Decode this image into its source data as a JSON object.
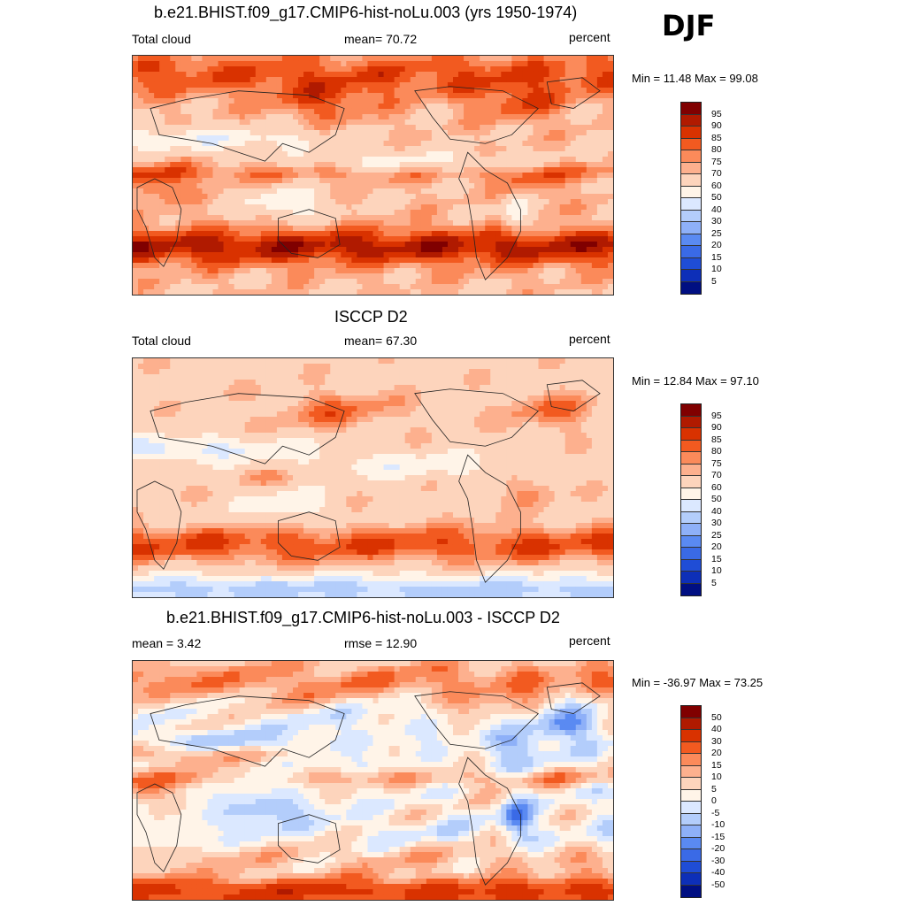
{
  "season": "DJF",
  "colors": {
    "abs_scale": [
      "#800000",
      "#b01a00",
      "#d93200",
      "#f25a20",
      "#fb8a5a",
      "#fdb08e",
      "#fdd4bc",
      "#fff4e8",
      "#dbe8ff",
      "#b3cdfb",
      "#8eb0f8",
      "#5a8af2",
      "#3a6ae6",
      "#1f4dd6",
      "#0d2fb8",
      "#000f82"
    ],
    "diff_scale": [
      "#800000",
      "#b01a00",
      "#d93200",
      "#f25a20",
      "#fb8a5a",
      "#fdb08e",
      "#fdd4bc",
      "#fff4e8",
      "#dbe8ff",
      "#b3cdfb",
      "#8eb0f8",
      "#5a8af2",
      "#3a6ae6",
      "#1f4dd6",
      "#0d2fb8",
      "#000f82"
    ]
  },
  "panels": [
    {
      "title": "b.e21.BHIST.f09_g17.CMIP6-hist-noLu.003 (yrs 1950-1974)",
      "left_label": "Total cloud",
      "center_label": "mean=  70.72",
      "units": "percent",
      "minmax": "Min =  11.48 Max =  99.08",
      "levels": [
        "95",
        "90",
        "85",
        "80",
        "75",
        "70",
        "60",
        "50",
        "40",
        "30",
        "25",
        "20",
        "15",
        "10",
        "5"
      ],
      "field": "model"
    },
    {
      "title": "ISCCP D2",
      "left_label": "Total cloud",
      "center_label": "mean=  67.30",
      "units": "percent",
      "minmax": "Min =  12.84 Max =  97.10",
      "levels": [
        "95",
        "90",
        "85",
        "80",
        "75",
        "70",
        "60",
        "50",
        "40",
        "30",
        "25",
        "20",
        "15",
        "10",
        "5"
      ],
      "field": "obs"
    },
    {
      "title": "b.e21.BHIST.f09_g17.CMIP6-hist-noLu.003 - ISCCP D2",
      "left_label": "mean =   3.42",
      "center_label": "rmse =  12.90",
      "units": "percent",
      "minmax": "Min = -36.97 Max =  73.25",
      "levels": [
        "50",
        "40",
        "30",
        "20",
        "15",
        "10",
        "5",
        "0",
        "-5",
        "-10",
        "-15",
        "-20",
        "-30",
        "-40",
        "-50"
      ],
      "field": "diff"
    }
  ]
}
